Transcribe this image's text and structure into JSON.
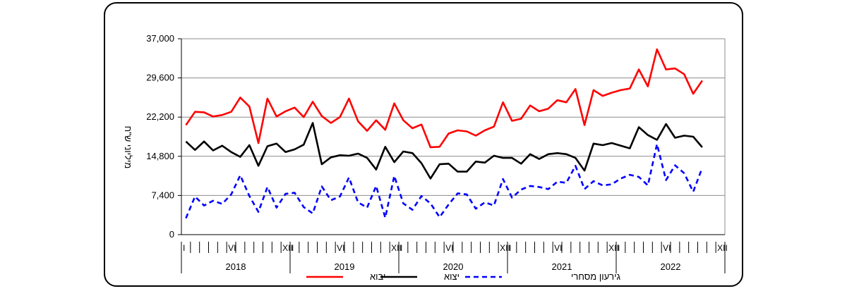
{
  "chart_data": {
    "type": "line",
    "ylabel": "מיליוני ש\"ח",
    "ylim": [
      0,
      37000
    ],
    "yticks": [
      "0",
      "7,400",
      "14,800",
      "22,200",
      "29,600",
      "37,000"
    ],
    "yticks_values": [
      0,
      7400,
      14800,
      22200,
      29600,
      37000
    ],
    "grid": true,
    "legend_position": "bottom",
    "years": [
      "2018",
      "2019",
      "2020",
      "2021",
      "2022"
    ],
    "month_markers": [
      {
        "month": 1,
        "label": "I"
      },
      {
        "month": 6,
        "label": "VI"
      },
      {
        "month": 12,
        "label": "XII"
      }
    ],
    "x_start": "2018-01",
    "x_end": "2022-12",
    "series": [
      {
        "name": "יבוא",
        "color": "#ff0000",
        "style": "solid",
        "values": [
          20700,
          23200,
          23100,
          22300,
          22600,
          23200,
          25900,
          24200,
          17300,
          25700,
          22300,
          23300,
          24000,
          22200,
          25100,
          22400,
          21100,
          22200,
          25700,
          21400,
          19600,
          21600,
          19800,
          24800,
          21600,
          20100,
          20800,
          16500,
          16600,
          19100,
          19700,
          19500,
          18700,
          19700,
          20400,
          25000,
          21500,
          21900,
          24400,
          23300,
          23800,
          25400,
          25000,
          27500,
          20700,
          27300,
          26200,
          26800,
          27300,
          27600,
          31200,
          28000,
          35000,
          31200,
          31400,
          30300,
          26600,
          29100
        ]
      },
      {
        "name": "יצוא",
        "color": "#000000",
        "style": "solid",
        "values": [
          17600,
          16000,
          17600,
          15900,
          16800,
          15600,
          14700,
          16900,
          13000,
          16700,
          17200,
          15600,
          16100,
          17000,
          21100,
          13300,
          14600,
          15000,
          14900,
          15300,
          14500,
          12300,
          16600,
          13700,
          15700,
          15400,
          13500,
          10600,
          13300,
          13400,
          11900,
          11900,
          13800,
          13600,
          14900,
          14500,
          14500,
          13400,
          15200,
          14300,
          15200,
          15400,
          15200,
          14500,
          12100,
          17200,
          16900,
          17300,
          16800,
          16300,
          20300,
          18800,
          17900,
          20900,
          18300,
          18700,
          18500,
          16500
        ]
      },
      {
        "name": "גירעון מסחרי",
        "color": "#0000ff",
        "style": "dashed",
        "values": [
          3100,
          7200,
          5500,
          6400,
          5800,
          7600,
          11200,
          7300,
          4300,
          9000,
          5100,
          7700,
          7900,
          5200,
          4000,
          9100,
          6500,
          7200,
          10800,
          6100,
          5100,
          9200,
          3200,
          11100,
          5900,
          4700,
          7300,
          5900,
          3300,
          5700,
          7800,
          7600,
          4900,
          6100,
          5500,
          10500,
          7000,
          8500,
          9200,
          9000,
          8600,
          10000,
          9800,
          13000,
          8600,
          10100,
          9300,
          9500,
          10600,
          11300,
          10900,
          9300,
          17100,
          10300,
          13100,
          11600,
          8100,
          12600
        ]
      }
    ]
  }
}
